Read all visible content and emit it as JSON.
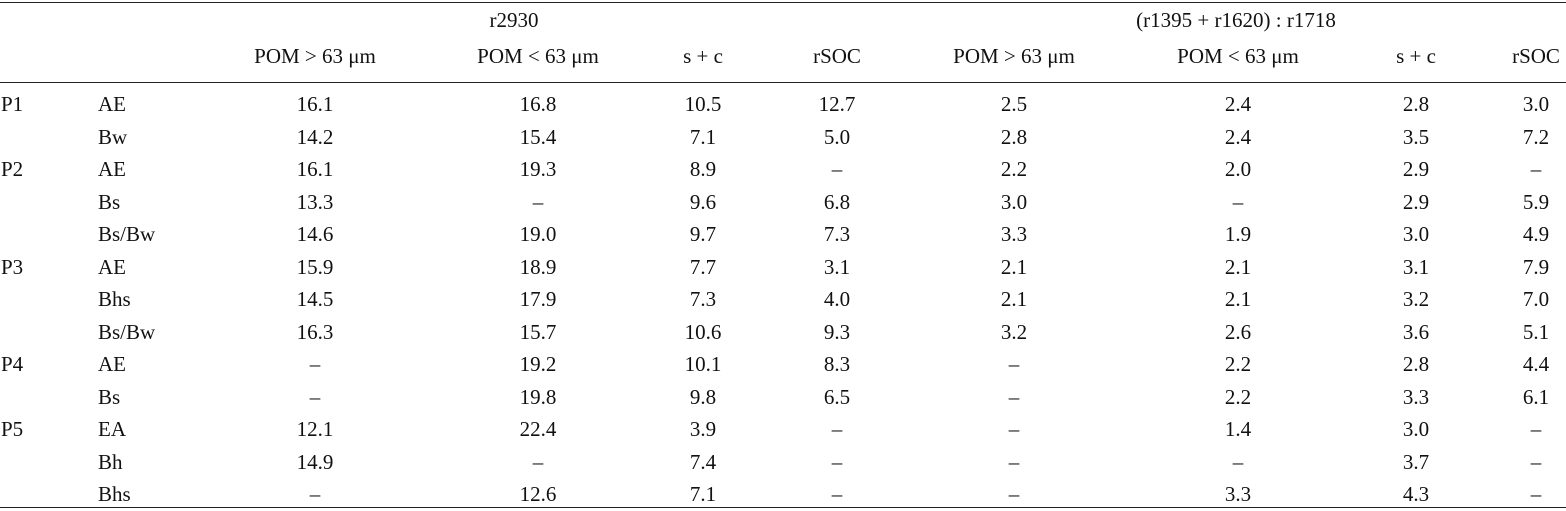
{
  "table": {
    "group_headers": [
      "r2930",
      "(r1395 + r1620) : r1718"
    ],
    "column_headers": [
      "POM > 63 μm",
      "POM < 63 μm",
      "s + c",
      "rSOC",
      "POM > 63 μm",
      "POM < 63 μm",
      "s + c",
      "rSOC"
    ],
    "rows": [
      {
        "profile": "P1",
        "horizon": "AE",
        "values": [
          "16.1",
          "16.8",
          "10.5",
          "12.7",
          "2.5",
          "2.4",
          "2.8",
          "3.0"
        ]
      },
      {
        "profile": "",
        "horizon": "Bw",
        "values": [
          "14.2",
          "15.4",
          "7.1",
          "5.0",
          "2.8",
          "2.4",
          "3.5",
          "7.2"
        ]
      },
      {
        "profile": "P2",
        "horizon": "AE",
        "values": [
          "16.1",
          "19.3",
          "8.9",
          "–",
          "2.2",
          "2.0",
          "2.9",
          "–"
        ]
      },
      {
        "profile": "",
        "horizon": "Bs",
        "values": [
          "13.3",
          "–",
          "9.6",
          "6.8",
          "3.0",
          "–",
          "2.9",
          "5.9"
        ]
      },
      {
        "profile": "",
        "horizon": "Bs/Bw",
        "values": [
          "14.6",
          "19.0",
          "9.7",
          "7.3",
          "3.3",
          "1.9",
          "3.0",
          "4.9"
        ]
      },
      {
        "profile": "P3",
        "horizon": "AE",
        "values": [
          "15.9",
          "18.9",
          "7.7",
          "3.1",
          "2.1",
          "2.1",
          "3.1",
          "7.9"
        ]
      },
      {
        "profile": "",
        "horizon": "Bhs",
        "values": [
          "14.5",
          "17.9",
          "7.3",
          "4.0",
          "2.1",
          "2.1",
          "3.2",
          "7.0"
        ]
      },
      {
        "profile": "",
        "horizon": "Bs/Bw",
        "values": [
          "16.3",
          "15.7",
          "10.6",
          "9.3",
          "3.2",
          "2.6",
          "3.6",
          "5.1"
        ]
      },
      {
        "profile": "P4",
        "horizon": "AE",
        "values": [
          "–",
          "19.2",
          "10.1",
          "8.3",
          "–",
          "2.2",
          "2.8",
          "4.4"
        ]
      },
      {
        "profile": "",
        "horizon": "Bs",
        "values": [
          "–",
          "19.8",
          "9.8",
          "6.5",
          "–",
          "2.2",
          "3.3",
          "6.1"
        ]
      },
      {
        "profile": "P5",
        "horizon": "EA",
        "values": [
          "12.1",
          "22.4",
          "3.9",
          "–",
          "–",
          "1.4",
          "3.0",
          "–"
        ]
      },
      {
        "profile": "",
        "horizon": "Bh",
        "values": [
          "14.9",
          "–",
          "7.4",
          "–",
          "–",
          "–",
          "3.7",
          "–"
        ]
      },
      {
        "profile": "",
        "horizon": "Bhs",
        "values": [
          "–",
          "12.6",
          "7.1",
          "–",
          "–",
          "3.3",
          "4.3",
          "–"
        ]
      }
    ]
  }
}
